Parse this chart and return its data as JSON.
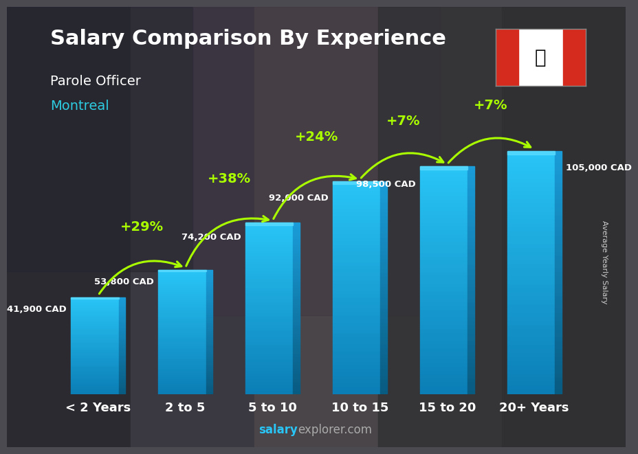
{
  "title": "Salary Comparison By Experience",
  "subtitle1": "Parole Officer",
  "subtitle2": "Montreal",
  "categories": [
    "< 2 Years",
    "2 to 5",
    "5 to 10",
    "10 to 15",
    "15 to 20",
    "20+ Years"
  ],
  "values": [
    41900,
    53800,
    74200,
    92000,
    98500,
    105000
  ],
  "labels": [
    "41,900 CAD",
    "53,800 CAD",
    "74,200 CAD",
    "92,000 CAD",
    "98,500 CAD",
    "105,000 CAD"
  ],
  "pct_changes": [
    "+29%",
    "+38%",
    "+24%",
    "+7%",
    "+7%"
  ],
  "bar_color_light": "#29c5f6",
  "bar_color_dark": "#0a7db5",
  "bar_color_side": "#1a9cd8",
  "bg_color": "#4a4a50",
  "title_color": "#ffffff",
  "subtitle1_color": "#ffffff",
  "subtitle2_color": "#2ecce0",
  "label_color": "#ffffff",
  "pct_color": "#aaff00",
  "tick_color": "#ffffff",
  "ylabel_text": "Average Yearly Salary",
  "ylabel_color": "#cccccc",
  "watermark_salary_color": "#29c5f6",
  "watermark_explorer_color": "#aaaaaa",
  "flag_red": "#d52b1e",
  "label_fontsize": 9.5,
  "pct_fontsize": 14,
  "title_fontsize": 22,
  "subtitle_fontsize": 14,
  "tick_fontsize": 13
}
